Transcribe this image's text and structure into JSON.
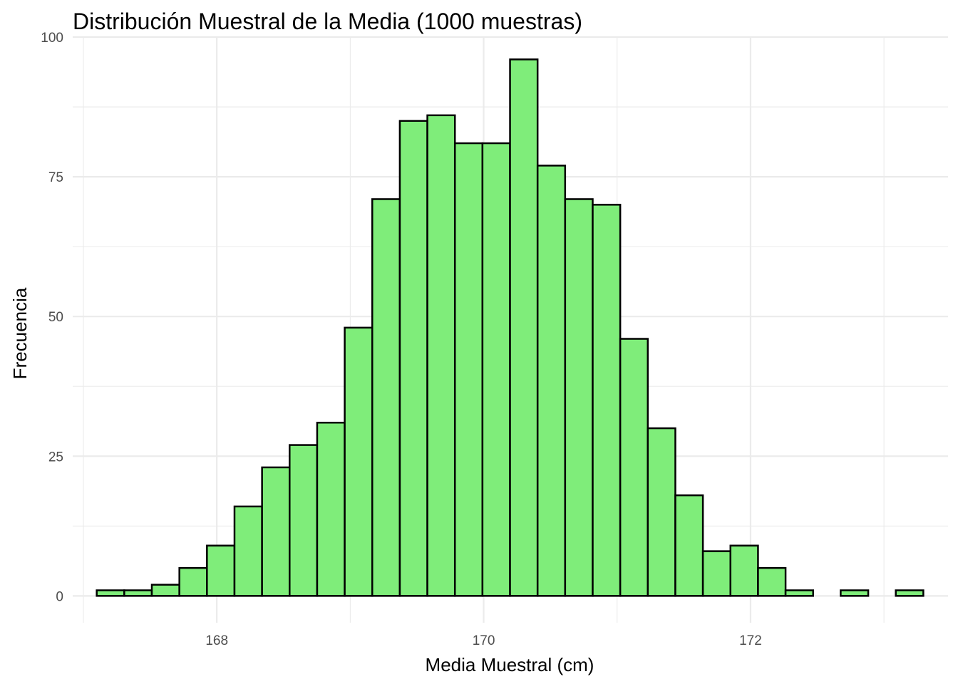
{
  "chart_data": {
    "type": "bar",
    "title": "Distribución Muestral de la Media (1000 muestras)",
    "xlabel": "Media Muestral (cm)",
    "ylabel": "Frecuencia",
    "bin_start": 167.1,
    "bin_width": 0.2065,
    "values": [
      1,
      1,
      2,
      5,
      9,
      16,
      23,
      27,
      31,
      48,
      71,
      85,
      86,
      81,
      81,
      96,
      77,
      71,
      70,
      46,
      30,
      18,
      8,
      9,
      5,
      1,
      0,
      1,
      0,
      1
    ],
    "xlim": [
      166.92,
      173.48
    ],
    "ylim": [
      -4.8,
      100
    ],
    "x_ticks": [
      168,
      170,
      172
    ],
    "x_tick_labels": [
      "168",
      "170",
      "172"
    ],
    "y_ticks": [
      0,
      25,
      50,
      75,
      100
    ],
    "y_tick_labels": [
      "0",
      "25",
      "50",
      "75",
      "100"
    ],
    "bar_fill": "#7fed7a",
    "bar_stroke": "#000000",
    "grid": true,
    "legend": "none"
  }
}
